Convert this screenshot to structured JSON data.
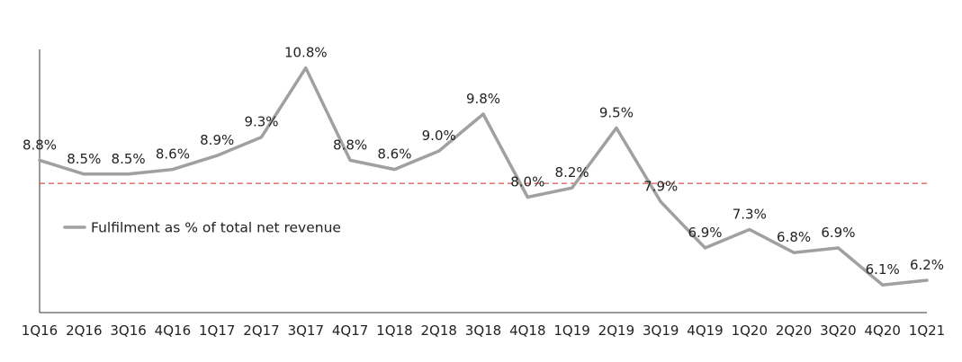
{
  "chart_data": {
    "type": "line",
    "categories": [
      "1Q16",
      "2Q16",
      "3Q16",
      "4Q16",
      "1Q17",
      "2Q17",
      "3Q17",
      "4Q17",
      "1Q18",
      "2Q18",
      "3Q18",
      "4Q18",
      "1Q19",
      "2Q19",
      "3Q19",
      "4Q19",
      "1Q20",
      "2Q20",
      "3Q20",
      "4Q20",
      "1Q21"
    ],
    "series": [
      {
        "name": "Fulfilment as % of total net revenue",
        "values": [
          8.8,
          8.5,
          8.5,
          8.6,
          8.9,
          9.3,
          10.8,
          8.8,
          8.6,
          9.0,
          9.8,
          8.0,
          8.2,
          9.5,
          7.9,
          6.9,
          7.3,
          6.8,
          6.9,
          6.1,
          6.2
        ],
        "labels": [
          "8.8%",
          "8.5%",
          "8.5%",
          "8.6%",
          "8.9%",
          "9.3%",
          "10.8%",
          "8.8%",
          "8.6%",
          "9.0%",
          "9.8%",
          "8.0%",
          "8.2%",
          "9.5%",
          "7.9%",
          "6.9%",
          "7.3%",
          "6.8%",
          "6.9%",
          "6.1%",
          "6.2%"
        ],
        "color": "#a0a0a0"
      }
    ],
    "reference_line": {
      "value": 8.3,
      "color": "#d62a2a",
      "style": "dashed"
    },
    "ylim": [
      5.5,
      11.2
    ],
    "legend": "middle-left",
    "grid": false,
    "title": "",
    "xlabel": "",
    "ylabel": ""
  }
}
